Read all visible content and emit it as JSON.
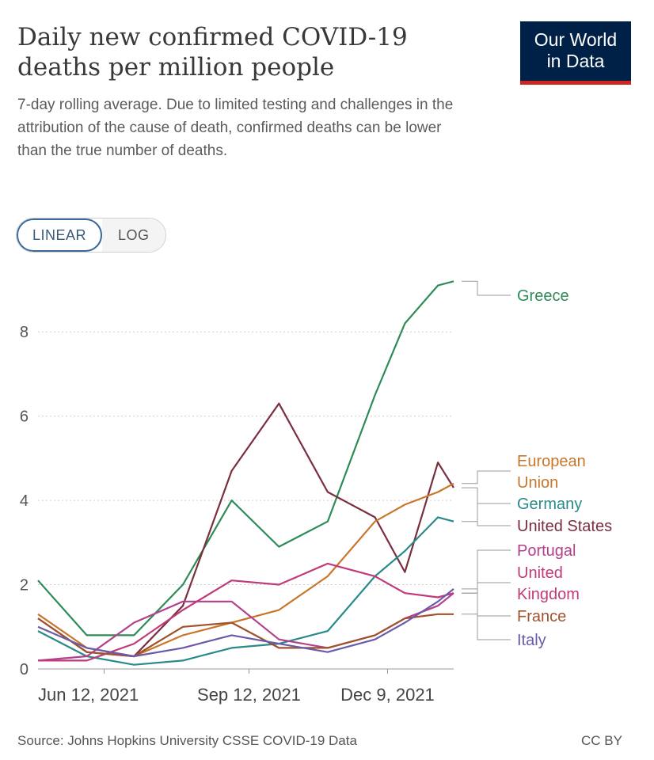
{
  "header": {
    "title": "Daily new confirmed COVID-19 deaths per million people",
    "subtitle": "7-day rolling average. Due to limited testing and challenges in the attribution of the cause of death, confirmed deaths can be lower than the true number of deaths.",
    "logo_line1": "Our World",
    "logo_line2": "in Data"
  },
  "scale_toggle": {
    "linear_label": "LINEAR",
    "log_label": "LOG",
    "selected": "LINEAR"
  },
  "footer": {
    "source": "Source: Johns Hopkins University CSSE COVID-19 Data",
    "license": "CC BY"
  },
  "colors": {
    "greece": "#2e8b57",
    "european_union": "#c8762a",
    "germany": "#2a8a8a",
    "united_states": "#7a2e3e",
    "portugal": "#b2408c",
    "united_kingdom": "#c03a7a",
    "france": "#a0522d",
    "italy": "#6a5aa8"
  },
  "chart_data": {
    "type": "line",
    "x": [
      "2021-05-01",
      "2021-06-01",
      "2021-07-01",
      "2021-08-01",
      "2021-09-01",
      "2021-10-01",
      "2021-11-01",
      "2021-12-01",
      "2021-12-20",
      "2022-01-10",
      "2022-01-20"
    ],
    "x_ticks": [
      "Jun 12, 2021",
      "Sep 12, 2021",
      "Dec 9, 2021"
    ],
    "x_tick_dates": [
      "2021-06-12",
      "2021-09-12",
      "2021-12-09"
    ],
    "y_ticks": [
      0,
      2,
      4,
      6,
      8
    ],
    "y_tick_labels": [
      "0",
      "2",
      "4",
      "6",
      "8"
    ],
    "ylim": [
      0,
      9.3
    ],
    "grid": true,
    "legend": "right",
    "series": [
      {
        "name": "Greece",
        "key": "greece",
        "values": [
          2.1,
          0.8,
          0.8,
          2.0,
          4.0,
          2.9,
          3.5,
          6.5,
          8.2,
          9.1,
          9.2
        ]
      },
      {
        "name": "United States",
        "key": "united_states",
        "values": [
          1.2,
          0.4,
          0.3,
          1.5,
          4.7,
          6.3,
          4.2,
          3.6,
          2.3,
          4.9,
          4.3
        ]
      },
      {
        "name": "European Union",
        "key": "european_union",
        "values": [
          1.3,
          0.5,
          0.3,
          0.8,
          1.1,
          1.4,
          2.2,
          3.5,
          3.9,
          4.2,
          4.4
        ]
      },
      {
        "name": "Germany",
        "key": "germany",
        "values": [
          0.9,
          0.3,
          0.1,
          0.2,
          0.5,
          0.6,
          0.9,
          2.2,
          2.8,
          3.6,
          3.5
        ]
      },
      {
        "name": "Portugal",
        "key": "portugal",
        "values": [
          0.2,
          0.3,
          1.1,
          1.6,
          1.6,
          0.7,
          0.5,
          0.8,
          1.2,
          1.5,
          1.8
        ]
      },
      {
        "name": "United Kingdom",
        "key": "united_kingdom",
        "values": [
          0.2,
          0.2,
          0.6,
          1.4,
          2.1,
          2.0,
          2.5,
          2.2,
          1.8,
          1.7,
          1.8
        ]
      },
      {
        "name": "France",
        "key": "france",
        "values": [
          1.2,
          0.4,
          0.3,
          1.0,
          1.1,
          0.5,
          0.5,
          0.8,
          1.2,
          1.3,
          1.3
        ]
      },
      {
        "name": "Italy",
        "key": "italy",
        "values": [
          1.0,
          0.5,
          0.3,
          0.5,
          0.8,
          0.6,
          0.4,
          0.7,
          1.1,
          1.6,
          1.9
        ]
      }
    ]
  }
}
